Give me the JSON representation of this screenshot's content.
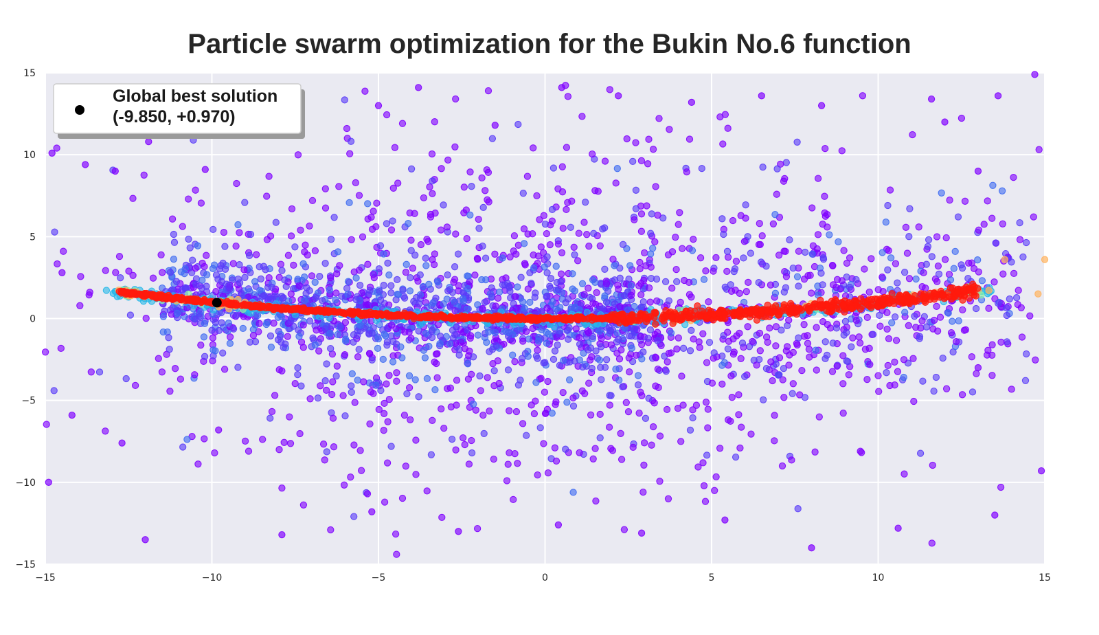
{
  "chart_data": {
    "type": "scatter",
    "title": "Particle swarm optimization for the Bukin No.6 function",
    "xlabel": "",
    "ylabel": "",
    "xlim": [
      -15,
      15
    ],
    "ylim": [
      -15,
      15
    ],
    "x_ticks": [
      -15,
      -10,
      -5,
      0,
      5,
      10,
      15
    ],
    "y_ticks": [
      -15,
      -10,
      -5,
      0,
      5,
      10,
      15
    ],
    "x_tick_labels": [
      "−15",
      "−10",
      "−5",
      "0",
      "5",
      "10",
      "15"
    ],
    "y_tick_labels": [
      "−15",
      "−10",
      "−5",
      "0",
      "5",
      "10",
      "15"
    ],
    "grid": true,
    "background_color": "#eaeaf2",
    "colormap": "rainbow",
    "particle_colors": [
      "#8000ff",
      "#5a3cf8",
      "#3f6bf2",
      "#26b8e8",
      "#8bf0a8",
      "#ffb360",
      "#ff1a0d"
    ],
    "particles_description_series": [
      {
        "name": "",
        "role": "scattered-exploration",
        "color": "#8000ff",
        "points_sample": [
          [
            -14.8,
            10.1
          ],
          [
            -14.5,
            2.8
          ],
          [
            -13.8,
            9.4
          ],
          [
            -12.9,
            9.0
          ],
          [
            -11.9,
            10.8
          ],
          [
            -10.2,
            9.1
          ],
          [
            -7.5,
            13.1
          ],
          [
            -5.0,
            13.0
          ],
          [
            -3.8,
            14.1
          ],
          [
            -1.5,
            11.8
          ],
          [
            0.5,
            14.1
          ],
          [
            2.2,
            13.6
          ],
          [
            4.4,
            13.2
          ],
          [
            6.5,
            13.6
          ],
          [
            8.3,
            13.0
          ],
          [
            11.6,
            13.4
          ],
          [
            13.6,
            13.6
          ],
          [
            14.7,
            14.9
          ],
          [
            -14.2,
            -5.9
          ],
          [
            -12.7,
            -7.6
          ],
          [
            -9.8,
            -6.8
          ],
          [
            -7.9,
            -13.2
          ],
          [
            -5.2,
            -11.8
          ],
          [
            -2.6,
            -13.0
          ],
          [
            0.4,
            -12.6
          ],
          [
            2.9,
            -13.1
          ],
          [
            5.4,
            -12.3
          ],
          [
            8.0,
            -14.0
          ],
          [
            10.6,
            -12.8
          ],
          [
            13.5,
            -12.0
          ],
          [
            -14.9,
            -10.0
          ],
          [
            14.9,
            -9.3
          ],
          [
            13.0,
            -3.0
          ],
          [
            13.0,
            9.0
          ],
          [
            12.0,
            12.0
          ],
          [
            -12.0,
            -13.5
          ]
        ]
      },
      {
        "name": "",
        "role": "converging-band",
        "color": "#ff1a0d",
        "curve": "y = 0.01 * x^2",
        "x_range": [
          -13.2,
          13.4
        ]
      }
    ],
    "legend": {
      "location": "upper-left",
      "entries": [
        {
          "marker_color": "#000000",
          "label_line1": "Global best solution",
          "label_line2": "(-9.850, +0.970)"
        }
      ]
    },
    "global_best": {
      "x": -9.85,
      "y": 0.97,
      "color": "#000000"
    }
  }
}
